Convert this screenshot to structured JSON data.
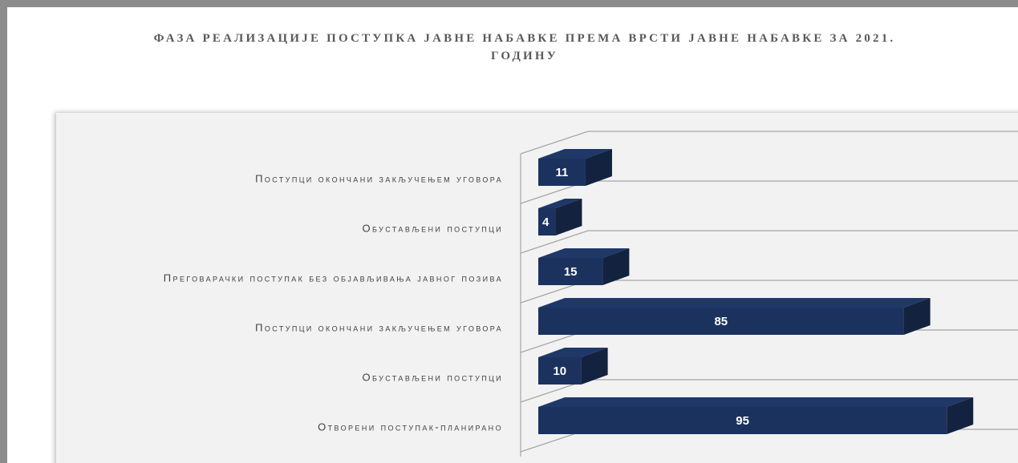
{
  "chart_data": {
    "type": "bar",
    "orientation": "horizontal",
    "title": "ФАЗА РЕАЛИЗАЦИЈЕ ПОСТУПКА ЈАВНЕ НАБАВКЕ ПРЕМА ВРСТИ ЈАВНЕ НАБАВКЕ ЗА 2021. ГОДИНУ",
    "categories": [
      "Поступци окончани закључењем уговора",
      "Обустављени поступци",
      "Преговарачки поступак без објављивања јавног позива",
      "Поступци окончани закључењем уговора",
      "Обустављени поступци",
      "Отворени поступак-планирано"
    ],
    "values": [
      11,
      4,
      15,
      85,
      10,
      95
    ],
    "color": "#1f3868"
  }
}
